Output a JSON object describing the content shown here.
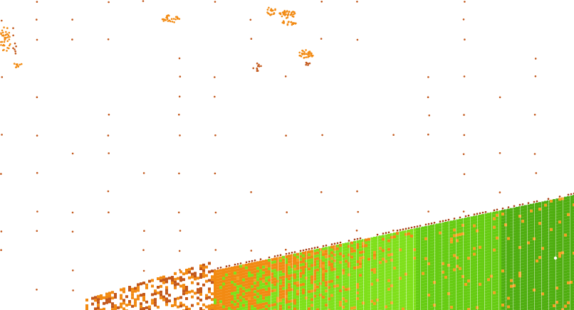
{
  "colors": {
    "background": "#ffffff",
    "sparse_dot": "#c2571a",
    "dark_dot": "#a83a10",
    "orange": "#f28a12",
    "orange_light": "#f5a020",
    "green": "#7fe01a",
    "green_mid": "#66cc12",
    "green_dark": "#4fae10",
    "white_mark": "#ffffff"
  }
}
